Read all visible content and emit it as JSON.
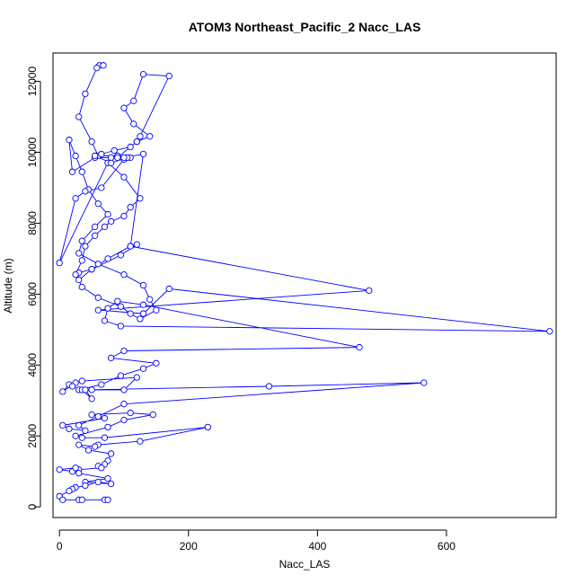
{
  "chart_data": {
    "type": "line",
    "title": "ATOM3 Northeast_Pacific_2 Nacc_LAS",
    "xlabel": "Nacc_LAS",
    "ylabel": "Altitude (m)",
    "xlim": [
      -10,
      770
    ],
    "ylim": [
      -300,
      12800
    ],
    "xticks": [
      0,
      200,
      400,
      600
    ],
    "yticks": [
      0,
      2000,
      4000,
      6000,
      8000,
      10000,
      12000
    ],
    "grid": false,
    "series": [
      {
        "color": "#0000ff",
        "marker": "open-circle",
        "x": [
          62,
          68,
          58,
          40,
          30,
          50,
          60,
          90,
          110,
          80,
          55,
          20,
          15,
          25,
          35,
          45,
          60,
          75,
          55,
          35,
          30,
          60,
          100,
          130,
          140,
          150,
          125,
          110,
          95,
          60,
          35,
          30,
          50,
          95,
          120,
          110,
          75,
          50,
          30,
          25,
          35,
          40,
          55,
          70,
          80,
          100,
          110,
          125,
          100,
          75,
          0,
          25,
          40,
          65,
          100,
          105,
          80,
          55,
          65,
          85,
          110,
          120,
          125,
          170,
          130,
          115,
          100,
          115,
          140,
          120,
          90,
          100,
          130,
          110,
          480,
          60,
          130,
          170,
          760,
          95,
          70,
          75,
          90,
          130,
          465,
          100,
          80,
          150,
          130,
          95,
          65,
          30,
          50,
          100,
          120,
          35,
          25,
          5,
          15,
          20,
          35,
          50,
          40,
          325,
          565,
          100,
          60,
          30,
          40,
          15,
          5,
          70,
          50,
          110,
          145,
          100,
          75,
          25,
          35,
          70,
          230,
          125,
          60,
          55,
          30,
          45,
          80,
          75,
          70,
          60,
          65,
          30,
          20,
          0,
          25,
          30,
          75,
          40,
          80,
          60,
          40,
          25,
          20,
          15,
          0,
          5,
          30,
          35,
          70,
          75
        ],
        "y": [
          12450,
          12450,
          12380,
          11650,
          11000,
          10300,
          9900,
          9900,
          9850,
          9850,
          9850,
          9450,
          10350,
          9900,
          9450,
          8950,
          8550,
          8250,
          7900,
          7500,
          7150,
          6850,
          6550,
          6250,
          5850,
          5550,
          5300,
          5450,
          5650,
          5900,
          6200,
          6400,
          6700,
          7100,
          7400,
          7350,
          7000,
          6700,
          6600,
          6550,
          6950,
          7350,
          7650,
          7900,
          8050,
          8200,
          8450,
          8700,
          9300,
          9700,
          6880,
          8700,
          8900,
          9000,
          9800,
          9850,
          9700,
          9900,
          9950,
          10050,
          10150,
          10300,
          10450,
          12150,
          12200,
          11450,
          11250,
          10800,
          10450,
          10300,
          9850,
          9850,
          9950,
          7350,
          6100,
          5550,
          5450,
          6150,
          4950,
          5100,
          5250,
          5600,
          5800,
          5700,
          4500,
          4400,
          4200,
          4050,
          3900,
          3700,
          3450,
          3300,
          3300,
          3300,
          3650,
          3550,
          3500,
          3250,
          3450,
          3400,
          3300,
          3050,
          3300,
          3400,
          3500,
          2900,
          2550,
          2300,
          2150,
          2200,
          2300,
          2500,
          2600,
          2650,
          2600,
          2450,
          2250,
          2000,
          1950,
          1950,
          2250,
          1850,
          1750,
          1700,
          1750,
          1600,
          1500,
          1300,
          1200,
          1150,
          1100,
          1050,
          1000,
          1050,
          1100,
          950,
          800,
          700,
          650,
          700,
          600,
          550,
          500,
          450,
          300,
          200,
          200,
          200,
          200,
          200
        ]
      }
    ]
  }
}
